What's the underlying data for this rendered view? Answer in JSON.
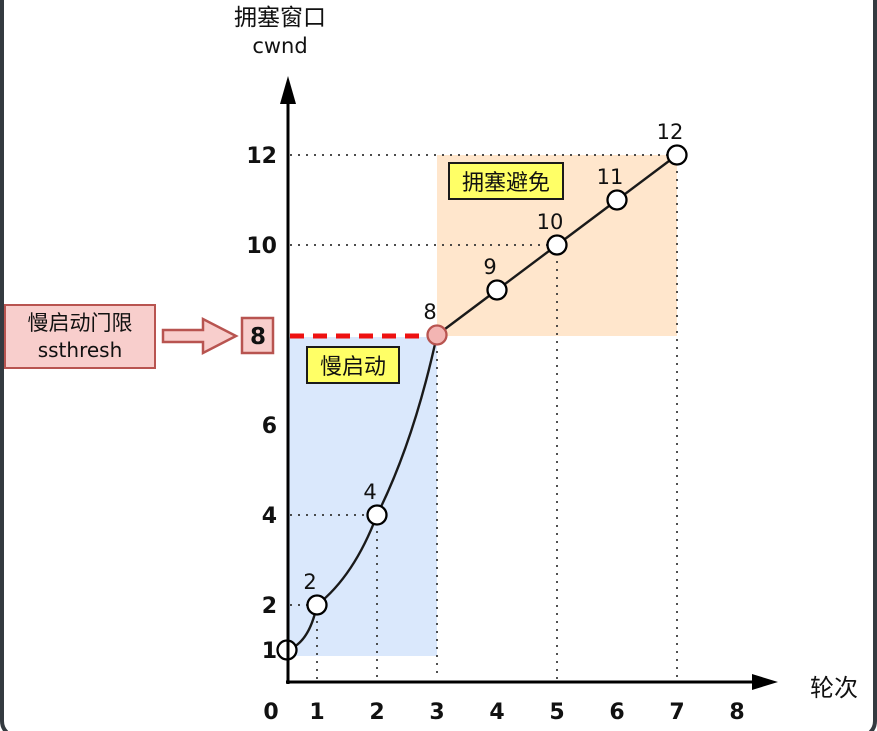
{
  "title": {
    "line1": "拥塞窗口",
    "line2": "cwnd"
  },
  "axes": {
    "x_label": "轮次"
  },
  "annotations": {
    "ssthresh_box": {
      "line1": "慢启动门限",
      "line2": "ssthresh"
    },
    "threshold_value": "8",
    "slow_start_tag": "慢启动",
    "congestion_avoidance_tag": "拥塞避免"
  },
  "colors": {
    "slow_start_region": "#dae8fc",
    "congestion_avoidance_region": "#ffe6cc",
    "tag_background": "#ffff66",
    "pink_background": "#f8cecc",
    "pink_border": "#b85450",
    "threshold_dash": "#ee1111",
    "line": "#1a1a1a",
    "point_fill": "#ffffff",
    "threshold_point_fill": "#f3b5b3",
    "guide_dots": "#333333"
  },
  "chart_data": {
    "type": "line",
    "title": "拥塞窗口 cwnd",
    "xlabel": "轮次",
    "ylabel": "拥塞窗口 cwnd",
    "x": [
      0,
      1,
      2,
      3,
      4,
      5,
      6,
      7
    ],
    "y": [
      1,
      2,
      4,
      8,
      9,
      10,
      11,
      12
    ],
    "point_labels": [
      "",
      "2",
      "4",
      "8",
      "9",
      "10",
      "11",
      "12"
    ],
    "x_ticks": [
      "0",
      "1",
      "2",
      "3",
      "4",
      "5",
      "6",
      "7",
      "8"
    ],
    "y_ticks": [
      "1",
      "2",
      "4",
      "6",
      "8",
      "10",
      "12"
    ],
    "boxed_y_tick": "8",
    "ssthresh": 8,
    "xlim": [
      0,
      8
    ],
    "ylim": [
      0,
      13
    ],
    "legend": "none",
    "grid": "dotted guides from selected points to axes",
    "phases": [
      {
        "name": "慢启动",
        "x_range": [
          0,
          3
        ],
        "y_range": [
          1,
          8
        ]
      },
      {
        "name": "拥塞避免",
        "x_range": [
          3,
          7
        ],
        "y_range": [
          8,
          12
        ]
      }
    ],
    "dotted_vline_rounds": [
      1,
      2,
      3,
      5,
      7
    ],
    "dotted_hline_values": [
      2,
      4,
      10,
      12
    ],
    "slow_start_curve_rounds": [
      0,
      3
    ]
  }
}
